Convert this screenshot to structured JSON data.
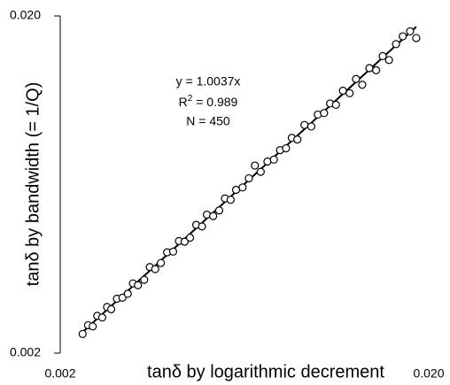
{
  "chart_data": {
    "type": "scatter",
    "x_label": "tanδ by logarithmic decrement",
    "y_label": "tanδ by bandwidth (= 1/Q)",
    "annotation": {
      "equation": "y = 1.0037x",
      "r2_base": "R",
      "r2_sup": "2",
      "r2_rest": " = 0.989",
      "n": "N = 450"
    },
    "fit_slope": 1.0037,
    "log_x": true,
    "log_y": true,
    "xlim": [
      0.002,
      0.02
    ],
    "ylim": [
      0.002,
      0.02
    ],
    "xticks": [
      {
        "value": 0.002,
        "label": "0.002"
      },
      {
        "value": 0.02,
        "label": "0.020"
      }
    ],
    "yticks": [
      {
        "value": 0.002,
        "label": "0.002"
      },
      {
        "value": 0.02,
        "label": "0.020"
      }
    ],
    "color": "#000000",
    "x": [
      0.0023,
      0.00238,
      0.00245,
      0.00252,
      0.0026,
      0.00268,
      0.00275,
      0.00285,
      0.00295,
      0.00305,
      0.00315,
      0.00325,
      0.00338,
      0.0035,
      0.00362,
      0.00375,
      0.0039,
      0.00405,
      0.0042,
      0.00435,
      0.0045,
      0.00468,
      0.00485,
      0.005,
      0.0052,
      0.0054,
      0.0056,
      0.0058,
      0.006,
      0.00625,
      0.0065,
      0.00675,
      0.007,
      0.0073,
      0.0076,
      0.0079,
      0.0082,
      0.0085,
      0.0088,
      0.0092,
      0.0096,
      0.01,
      0.0104,
      0.0108,
      0.0112,
      0.0117,
      0.0122,
      0.0127,
      0.0132,
      0.0138,
      0.0144,
      0.015,
      0.0156,
      0.0163,
      0.017,
      0.0178,
      0.0185
    ],
    "values": [
      0.00228,
      0.00242,
      0.0024,
      0.00258,
      0.00255,
      0.00274,
      0.0027,
      0.0029,
      0.00292,
      0.003,
      0.00322,
      0.00318,
      0.0033,
      0.0036,
      0.00355,
      0.0037,
      0.00398,
      0.004,
      0.0043,
      0.00428,
      0.0044,
      0.0048,
      0.00475,
      0.00515,
      0.0051,
      0.0053,
      0.00575,
      0.0057,
      0.0061,
      0.0062,
      0.0066,
      0.0072,
      0.0069,
      0.0074,
      0.0075,
      0.008,
      0.0081,
      0.0087,
      0.0086,
      0.0095,
      0.0094,
      0.0102,
      0.0103,
      0.011,
      0.0109,
      0.012,
      0.0118,
      0.013,
      0.0125,
      0.014,
      0.0138,
      0.0152,
      0.0148,
      0.0165,
      0.0174,
      0.018,
      0.0172
    ]
  }
}
